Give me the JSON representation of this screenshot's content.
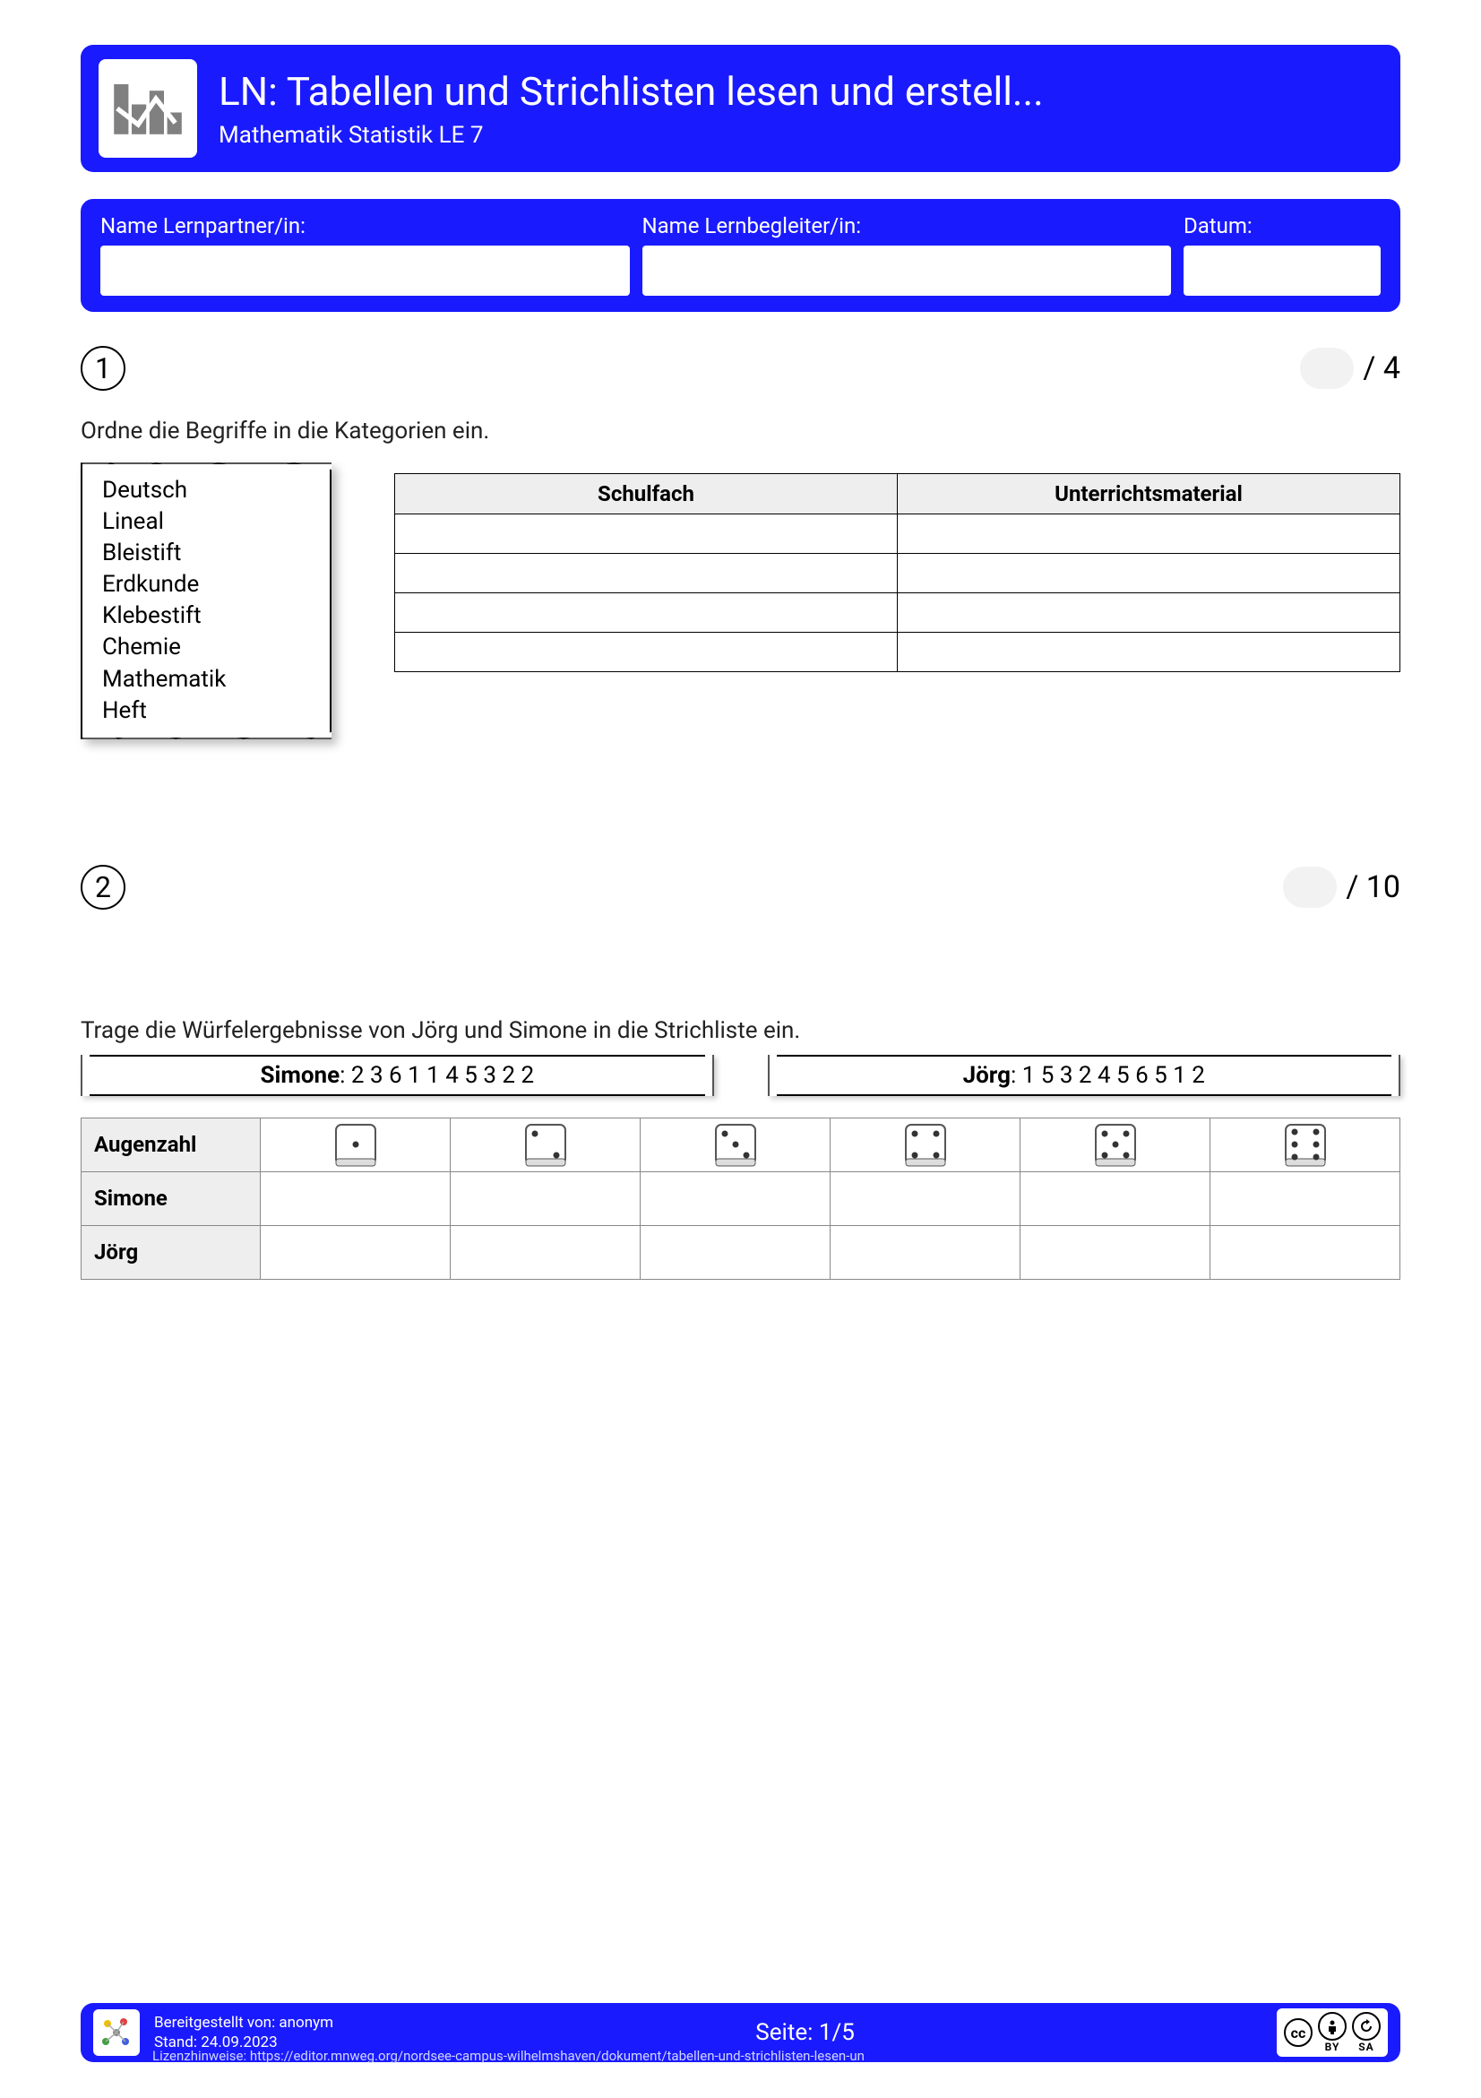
{
  "header": {
    "title": "LN: Tabellen und Strichlisten lesen und erstell...",
    "subtitle": "Mathematik Statistik LE 7",
    "brand_color": "#1a1aff",
    "icon_bar_color": "#808080"
  },
  "form": {
    "partner_label": "Name Lernpartner/in:",
    "begleiter_label": "Name Lernbegleiter/in:",
    "datum_label": "Datum:"
  },
  "q1": {
    "number": "1",
    "max_score": "/ 4",
    "instruction": "Ordne die Begriffe in die Kategorien ein.",
    "words": [
      "Deutsch",
      "Lineal",
      "Bleistift",
      "Erdkunde",
      "Klebestift",
      "Chemie",
      "Mathematik",
      "Heft"
    ],
    "table_headers": [
      "Schulfach",
      "Unterrichtsmaterial"
    ],
    "empty_rows": 4
  },
  "q2": {
    "number": "2",
    "max_score": "/ 10",
    "instruction": "Trage die Würfelergebnisse von Jörg und Simone in die Strichliste ein.",
    "simone_label": "Simone",
    "simone_values": "2 3 6 1 1 4 5 3 2 2",
    "joerg_label": "Jörg",
    "joerg_values": "1 5 3 2 4 5 6 5 1 2",
    "row_labels": [
      "Augenzahl",
      "Simone",
      "Jörg"
    ],
    "dice_faces": [
      1,
      2,
      3,
      4,
      5,
      6
    ]
  },
  "footer": {
    "provided_by_label": "Bereitgestellt von:",
    "provided_by": "anonym",
    "stand_label": "Stand:",
    "stand": "24.09.2023",
    "page_label": "Seite:",
    "page": "1/5",
    "license_line": "Lizenzhinweise: https://editor.mnweg.org/nordsee-campus-wilhelmshaven/dokument/tabellen-und-strichlisten-lesen-un",
    "cc_text": "cc",
    "cc_by": "BY",
    "cc_sa": "SA"
  }
}
